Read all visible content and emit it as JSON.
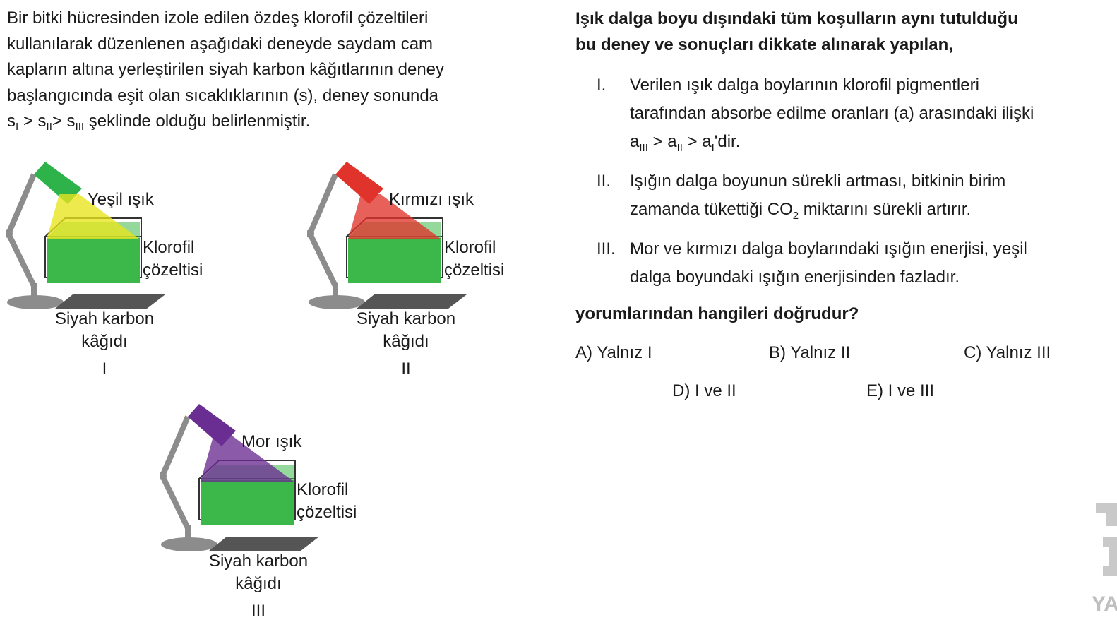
{
  "intro": {
    "line1": "Bir bitki hücresinden izole edilen özdeş klorofil çözeltileri",
    "line2": "kullanılarak düzenlenen aşağıdaki deneyde saydam cam",
    "line3": "kapların altına yerleştirilen siyah karbon kâğıtlarının deney",
    "line4": "başlangıcında eşit olan sıcaklıklarının (s), deney sonunda",
    "line5_s": "s",
    "line5_sub1": "I",
    "line5_gt1": " > s",
    "line5_sub2": "II",
    "line5_gt2": "> s",
    "line5_sub3": "III",
    "line5_rest": " şeklinde olduğu belirlenmiştir."
  },
  "figures": [
    {
      "light_label": "Yeşil ışık",
      "solution_label_1": "Klorofil",
      "solution_label_2": "çözeltisi",
      "paper_label_1": "Siyah karbon",
      "paper_label_2": "kâğıdı",
      "number": "I",
      "lamp_color": "#2db34a",
      "beam_color": "#e8e41c"
    },
    {
      "light_label": "Kırmızı ışık",
      "solution_label_1": "Klorofil",
      "solution_label_2": "çözeltisi",
      "paper_label_1": "Siyah karbon",
      "paper_label_2": "kâğıdı",
      "number": "II",
      "lamp_color": "#e0332b",
      "beam_color": "#e0332b"
    },
    {
      "light_label": "Mor ışık",
      "solution_label_1": "Klorofil",
      "solution_label_2": "çözeltisi",
      "paper_label_1": "Siyah karbon",
      "paper_label_2": "kâğıdı",
      "number": "III",
      "lamp_color": "#6a2d91",
      "beam_color": "#6a2d91"
    }
  ],
  "question": {
    "head_line1": "Işık dalga boyu dışındaki tüm koşulların aynı tutulduğu",
    "head_line2": "bu deney ve sonuçları dikkate alınarak yapılan,",
    "statements": [
      {
        "no": "I.",
        "l1": "Verilen ışık dalga boylarının klorofil pigmentleri",
        "l2": "tarafından absorbe edilme oranları (a) arasındaki ilişki",
        "l3_a": "a",
        "l3_s1": "III",
        "l3_b": " > a",
        "l3_s2": "II",
        "l3_c": " > a",
        "l3_s3": "I",
        "l3_d": "'dir."
      },
      {
        "no": "II.",
        "l1": "Işığın dalga boyunun sürekli artması, bitkinin birim",
        "l2_a": "zamanda tükettiği CO",
        "l2_sub": "2",
        "l2_b": " miktarını sürekli artırır."
      },
      {
        "no": "III.",
        "l1": "Mor ve kırmızı dalga boylarındaki ışığın enerjisi, yeşil",
        "l2": "dalga boyundaki ışığın enerjisinden fazladır."
      }
    ],
    "ask": "yorumlarından hangileri doğrudur?",
    "options": {
      "a": "A) Yalnız I",
      "b": "B) Yalnız II",
      "c": "C) Yalnız III",
      "d": "D) I ve II",
      "e": "E) I ve III"
    }
  },
  "watermark_text": "YA",
  "colors": {
    "solution_green": "#3cb84a",
    "lamp_body": "#8c8c8c",
    "paper": "#555555",
    "watermark": "#bfbfbf"
  }
}
